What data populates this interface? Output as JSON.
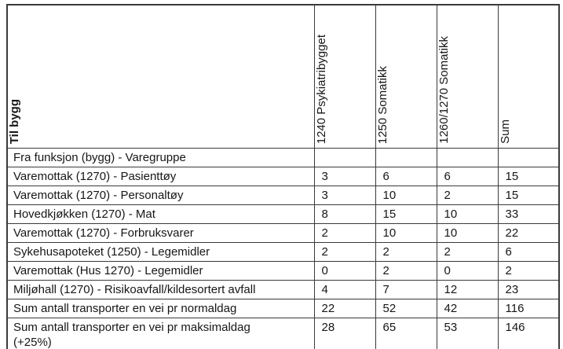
{
  "table": {
    "corner_header": "Til bygg",
    "column_headers": [
      "1240 Psykiatribygget",
      "1250 Somatikk",
      "1260/1270 Somatikk",
      "Sum"
    ],
    "section_header": "Fra funksjon (bygg) - Varegruppe",
    "rows": [
      {
        "label": "Varemottak (1270) - Pasienttøy",
        "values": [
          "3",
          "6",
          "6",
          "15"
        ]
      },
      {
        "label": "Varemottak (1270) - Personaltøy",
        "values": [
          "3",
          "10",
          "2",
          "15"
        ]
      },
      {
        "label": "Hovedkjøkken (1270) - Mat",
        "values": [
          "8",
          "15",
          "10",
          "33"
        ]
      },
      {
        "label": "Varemottak (1270) - Forbruksvarer",
        "values": [
          "2",
          "10",
          "10",
          "22"
        ]
      },
      {
        "label": "Sykehusapoteket (1250) - Legemidler",
        "values": [
          "2",
          "2",
          "2",
          "6"
        ]
      },
      {
        "label": "Varemottak (Hus 1270) - Legemidler",
        "values": [
          "0",
          "2",
          "0",
          "2"
        ]
      },
      {
        "label": "Miljøhall (1270) - Risikoavfall/kildesortert avfall",
        "values": [
          "4",
          "7",
          "12",
          "23"
        ]
      },
      {
        "label": "Sum antall transporter en vei pr normaldag",
        "values": [
          "22",
          "52",
          "42",
          "116"
        ]
      },
      {
        "label": "Sum antall transporter en vei pr maksimaldag\n(+25%)",
        "values": [
          "28",
          "65",
          "53",
          "146"
        ]
      }
    ]
  },
  "colors": {
    "border": "#3a3a3a",
    "text": "#161616",
    "background": "#ffffff"
  }
}
